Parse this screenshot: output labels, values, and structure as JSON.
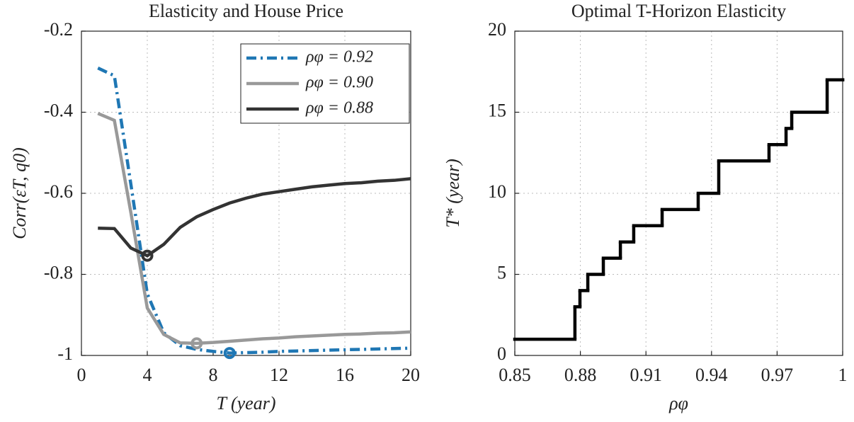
{
  "chart_data": [
    {
      "type": "line",
      "title": "Elasticity and House Price",
      "xlabel": "T (year)",
      "ylabel": "Corr(εT, q0)",
      "x": [
        1,
        2,
        3,
        4,
        5,
        6,
        7,
        8,
        9,
        10,
        11,
        12,
        13,
        14,
        15,
        16,
        17,
        18,
        19,
        20
      ],
      "series": [
        {
          "name": "ρφ = 0.92",
          "color": "#1f77b4",
          "linestyle": "dashdot",
          "mark_minimum": true,
          "values": [
            -0.291,
            -0.31,
            -0.577,
            -0.848,
            -0.944,
            -0.976,
            -0.985,
            -0.99,
            -0.994,
            -0.993,
            -0.992,
            -0.99,
            -0.989,
            -0.988,
            -0.987,
            -0.986,
            -0.985,
            -0.984,
            -0.983,
            -0.982
          ]
        },
        {
          "name": "ρφ = 0.90",
          "color": "#999999",
          "linestyle": "solid",
          "mark_minimum": true,
          "values": [
            -0.403,
            -0.42,
            -0.647,
            -0.883,
            -0.948,
            -0.969,
            -0.97,
            -0.968,
            -0.965,
            -0.962,
            -0.959,
            -0.957,
            -0.954,
            -0.952,
            -0.95,
            -0.948,
            -0.947,
            -0.945,
            -0.944,
            -0.942
          ]
        },
        {
          "name": "ρφ = 0.88",
          "color": "#333333",
          "linestyle": "solid",
          "mark_minimum": true,
          "values": [
            -0.686,
            -0.687,
            -0.735,
            -0.754,
            -0.726,
            -0.684,
            -0.658,
            -0.64,
            -0.624,
            -0.612,
            -0.602,
            -0.596,
            -0.59,
            -0.584,
            -0.58,
            -0.576,
            -0.574,
            -0.57,
            -0.568,
            -0.564
          ]
        }
      ],
      "xlim": [
        0,
        20
      ],
      "xticks": [
        0,
        4,
        8,
        12,
        16,
        20
      ],
      "ylim": [
        -1,
        -0.2
      ],
      "yticks": [
        -1,
        -0.8,
        -0.6,
        -0.4,
        -0.2
      ],
      "grid": true,
      "legend": "upper right"
    },
    {
      "type": "step",
      "title": "Optimal T-Horizon Elasticity",
      "xlabel": "ρφ",
      "ylabel": "T* (year)",
      "x": [
        0.85,
        0.8775,
        0.8798,
        0.8834,
        0.8905,
        0.8983,
        0.9044,
        0.9174,
        0.9339,
        0.9433,
        0.9663,
        0.9741,
        0.9767,
        0.9929,
        1
      ],
      "values": [
        1,
        3,
        4,
        5,
        6,
        7,
        8,
        9,
        10,
        12,
        13,
        14,
        15,
        17,
        17
      ],
      "color": "#000000",
      "xlim": [
        0.85,
        1
      ],
      "xticks": [
        0.85,
        0.88,
        0.91,
        0.94,
        0.97,
        1
      ],
      "ylim": [
        0,
        20
      ],
      "yticks": [
        0,
        5,
        10,
        15,
        20
      ],
      "grid": true
    }
  ]
}
